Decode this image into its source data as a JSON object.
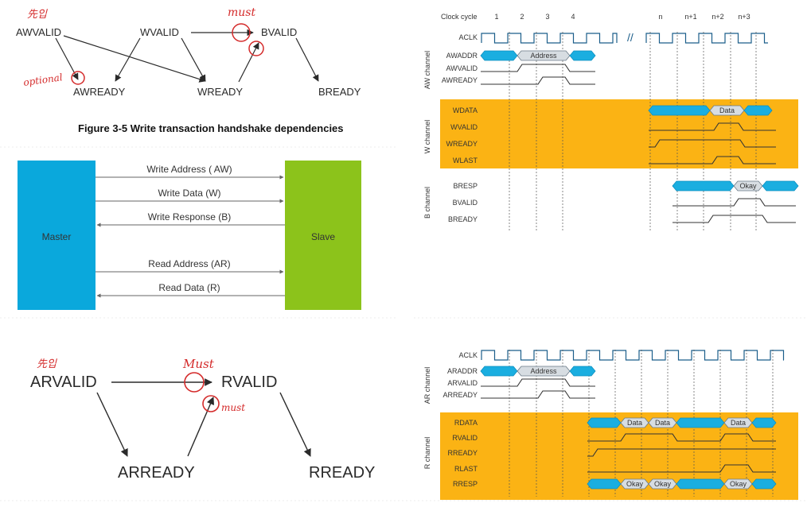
{
  "handshake_write": {
    "nodes": [
      "AWVALID",
      "WVALID",
      "BVALID",
      "AWREADY",
      "WREADY",
      "BREADY"
    ],
    "caption": "Figure 3-5 Write transaction handshake dependencies",
    "annotations": {
      "awvalid_note": "先입",
      "must_note": "must",
      "optional_note": "optional"
    }
  },
  "channel_diagram": {
    "master": "Master",
    "slave": "Slave",
    "channels": [
      "Write Address ( AW)",
      "Write Data (W)",
      "Write Response (B)",
      "Read Address (AR)",
      "Read Data (R)"
    ],
    "colors": {
      "master": "#0aa8dc",
      "slave": "#8cc31b"
    }
  },
  "handshake_read": {
    "nodes": [
      "ARVALID",
      "RVALID",
      "ARREADY",
      "RREADY"
    ],
    "annotations": {
      "arvalid_note": "先입",
      "must_top": "Must",
      "must_bottom": "must"
    }
  },
  "timing_write": {
    "clock_cycle_label": "Clock cycle",
    "cycles": [
      "1",
      "2",
      "3",
      "4",
      "n",
      "n+1",
      "n+2",
      "n+3"
    ],
    "clock": "ACLK",
    "aw_channel": {
      "label": "AW channel",
      "signals": [
        "AWADDR",
        "AWVALID",
        "AWREADY"
      ],
      "bus_value": "Address"
    },
    "w_channel": {
      "label": "W channel",
      "signals": [
        "WDATA",
        "WVALID",
        "WREADY",
        "WLAST"
      ],
      "bus_value": "Data"
    },
    "b_channel": {
      "label": "B channel",
      "signals": [
        "BRESP",
        "BVALID",
        "BREADY"
      ],
      "bus_value": "Okay"
    }
  },
  "timing_read": {
    "clock": "ACLK",
    "ar_channel": {
      "label": "AR channel",
      "signals": [
        "ARADDR",
        "ARVALID",
        "ARREADY"
      ],
      "bus_value": "Address"
    },
    "r_channel": {
      "label": "R channel",
      "signals": [
        "RDATA",
        "RVALID",
        "RREADY",
        "RLAST",
        "RRESP"
      ],
      "data_values": [
        "Data",
        "Data",
        "Data"
      ],
      "resp_values": [
        "Okay",
        "Okay",
        "Okay"
      ]
    }
  },
  "colors": {
    "bus": "#1aaee0",
    "bus_value": "#d7dde2",
    "highlight": "#fbb314",
    "annotation": "#d42a2a"
  }
}
